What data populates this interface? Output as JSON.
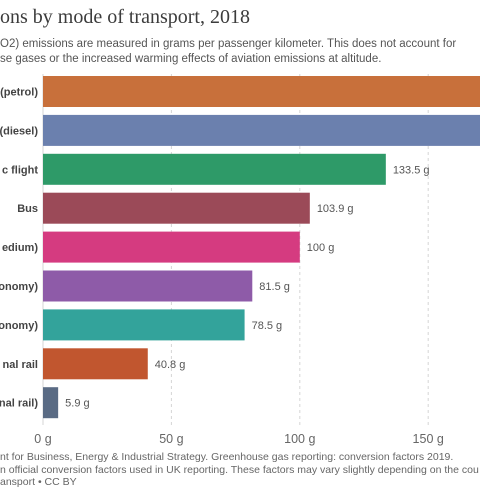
{
  "title": "ons by mode of transport, 2018",
  "subtitle_lines": [
    "O2) emissions are measured in grams per passenger kilometer. This does not account for",
    "se gases or the increased warming effects of aviation emissions at altitude."
  ],
  "footer_lines": [
    "nt for Business, Energy & Industrial Strategy. Greenhouse gas reporting: conversion factors 2019.",
    "n official conversion factors used in UK reporting. These factors may vary slightly depending on the cou",
    "ansport • CC BY"
  ],
  "chart_data": {
    "type": "bar",
    "orientation": "horizontal",
    "title": "ons by mode of transport, 2018",
    "xlabel": "",
    "ylabel": "",
    "xlim": [
      0,
      170
    ],
    "x_ticks": [
      0,
      50,
      100,
      150
    ],
    "x_tick_labels": [
      "0 g",
      "50 g",
      "100 g",
      "150 g"
    ],
    "grid": "vertical dashed",
    "value_unit": " g",
    "categories": [
      "(petrol)",
      "(diesel)",
      "c flight",
      "Bus",
      "edium)",
      "onomy)",
      "onomy)",
      "nal rail",
      "nal rail)"
    ],
    "values": [
      192,
      171,
      133.5,
      103.9,
      100,
      81.5,
      78.5,
      40.8,
      5.9
    ],
    "value_labels": [
      "",
      "",
      "133.5 g",
      "103.9 g",
      "100 g",
      "81.5 g",
      "78.5 g",
      "40.8 g",
      "5.9 g"
    ],
    "colors": [
      "#c8703b",
      "#6b80ae",
      "#2e9a68",
      "#9b4a58",
      "#d53b80",
      "#8e5ba8",
      "#33a39b",
      "#c1562f",
      "#5a6b84"
    ]
  }
}
